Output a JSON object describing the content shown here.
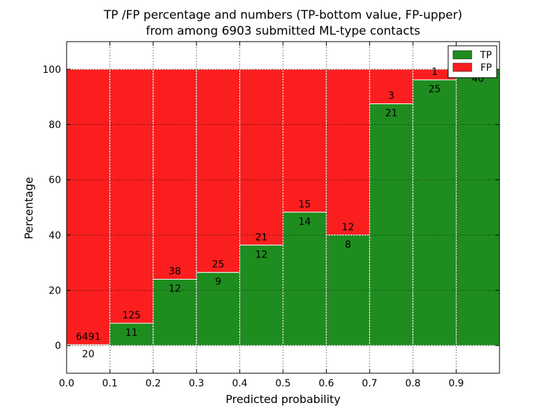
{
  "chart_data": {
    "type": "bar",
    "stacked": true,
    "normalized_to": 100,
    "title_line1": "TP /FP percentage and numbers (TP-bottom value, FP-upper)",
    "title_line2": "from among 6903 submitted ML-type contacts",
    "xlabel": "Predicted probability",
    "ylabel": "Percentage",
    "xlim": [
      0.0,
      1.0
    ],
    "ylim": [
      -10,
      110
    ],
    "bin_width": 0.1,
    "bin_edges": [
      0.0,
      0.1,
      0.2,
      0.3,
      0.4,
      0.5,
      0.6,
      0.7,
      0.8,
      0.9,
      1.0
    ],
    "x_tick_labels": [
      "0.0",
      "0.1",
      "0.2",
      "0.3",
      "0.4",
      "0.5",
      "0.6",
      "0.7",
      "0.8",
      "0.9"
    ],
    "y_ticks": [
      0,
      20,
      40,
      60,
      80,
      100
    ],
    "grid": true,
    "grid_style": "dotted",
    "series": [
      {
        "name": "TP",
        "position": "bottom",
        "color": "#1f8c1f",
        "values": [
          20,
          11,
          12,
          9,
          12,
          14,
          8,
          21,
          25,
          40
        ]
      },
      {
        "name": "FP",
        "position": "top",
        "color": "#fb1e1e",
        "values": [
          6491,
          125,
          38,
          25,
          21,
          15,
          12,
          3,
          1,
          0
        ]
      }
    ],
    "bar_edge_color": "#ffffff",
    "value_labels": "counts drawn at TP/FP stack boundary (TP below, FP above)",
    "legend": {
      "position": "upper right",
      "entries": [
        {
          "label": "TP",
          "color": "#1f8c1f"
        },
        {
          "label": "FP",
          "color": "#fb1e1e"
        }
      ]
    }
  }
}
